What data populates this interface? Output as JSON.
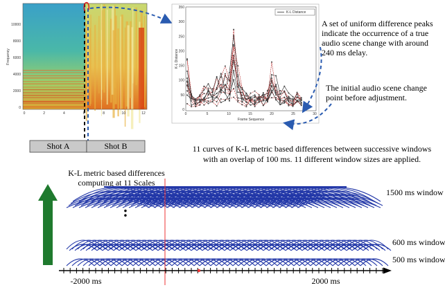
{
  "spectrogram": {
    "y_label": "Frequency",
    "y_ticks": [
      "10000",
      "8000",
      "6000",
      "4000",
      "2000",
      "0"
    ],
    "x_ticks": [
      "0",
      "2",
      "4",
      "6",
      "8",
      "10",
      "12"
    ]
  },
  "shots": [
    "Shot A",
    "Shot B"
  ],
  "plot": {
    "legend": "K-L Distance",
    "y_label": "K-L Distance",
    "x_label": "Frame Sequence",
    "y_ticks": [
      "350",
      "300",
      "250",
      "200",
      "150",
      "100",
      "50",
      "0"
    ],
    "x_ticks": [
      "0",
      "5",
      "10",
      "15",
      "20",
      "25",
      "30"
    ]
  },
  "annotations": {
    "peaks": [
      "A set of uniform difference peaks",
      "indicate the occurrence of a true",
      "audio scene change with around",
      "240 ms delay."
    ],
    "initial": [
      "The initial audio scene change",
      "point before adjustment."
    ],
    "caption": [
      "11 curves of K-L metric based differences between successive windows",
      "with an overlap of 100 ms. 11 different window sizes are applied."
    ],
    "scales": [
      "K-L metric based differences",
      "computing at 11 Scales"
    ],
    "dots": ":"
  },
  "windows": [
    "1500 ms window",
    "600 ms window",
    "500 ms window"
  ],
  "axis": [
    "-2000 ms",
    "2000 ms"
  ]
}
